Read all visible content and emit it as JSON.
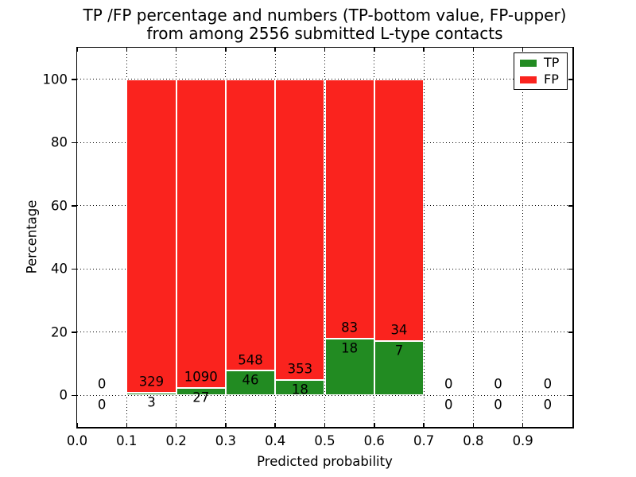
{
  "chart_data": {
    "type": "bar",
    "variant": "stacked-percentage-histogram",
    "title_lines": [
      "TP /FP percentage and numbers (TP-bottom value, FP-upper)",
      "from among 2556 submitted L-type contacts"
    ],
    "xlabel": "Predicted probability",
    "ylabel": "Percentage",
    "xlim": [
      0.0,
      1.0
    ],
    "ylim": [
      -10,
      110
    ],
    "xtick_labels": [
      "0.0",
      "0.1",
      "0.2",
      "0.3",
      "0.4",
      "0.5",
      "0.6",
      "0.7",
      "0.8",
      "0.9"
    ],
    "ytick_values": [
      0,
      20,
      40,
      60,
      80,
      100
    ],
    "grid": "dotted-black",
    "bin_width": 0.1,
    "bin_starts": [
      0.0,
      0.1,
      0.2,
      0.3,
      0.4,
      0.5,
      0.6,
      0.7,
      0.8,
      0.9
    ],
    "series": [
      {
        "name": "TP",
        "color": "#228b22",
        "counts": [
          0,
          3,
          27,
          46,
          18,
          18,
          7,
          0,
          0,
          0
        ]
      },
      {
        "name": "FP",
        "color": "#fa231e",
        "counts": [
          0,
          329,
          1090,
          548,
          353,
          83,
          34,
          0,
          0,
          0
        ]
      }
    ],
    "stack_total_percent": 100,
    "total_contacts": 2556,
    "legend": {
      "position": "upper-right",
      "entries": [
        "TP",
        "FP"
      ]
    },
    "annotation_rule": "FP count printed above TP count at each bin; bars show TP%% (bottom, green) and FP%% (top, red) of each bin, stacked to 100%%"
  }
}
